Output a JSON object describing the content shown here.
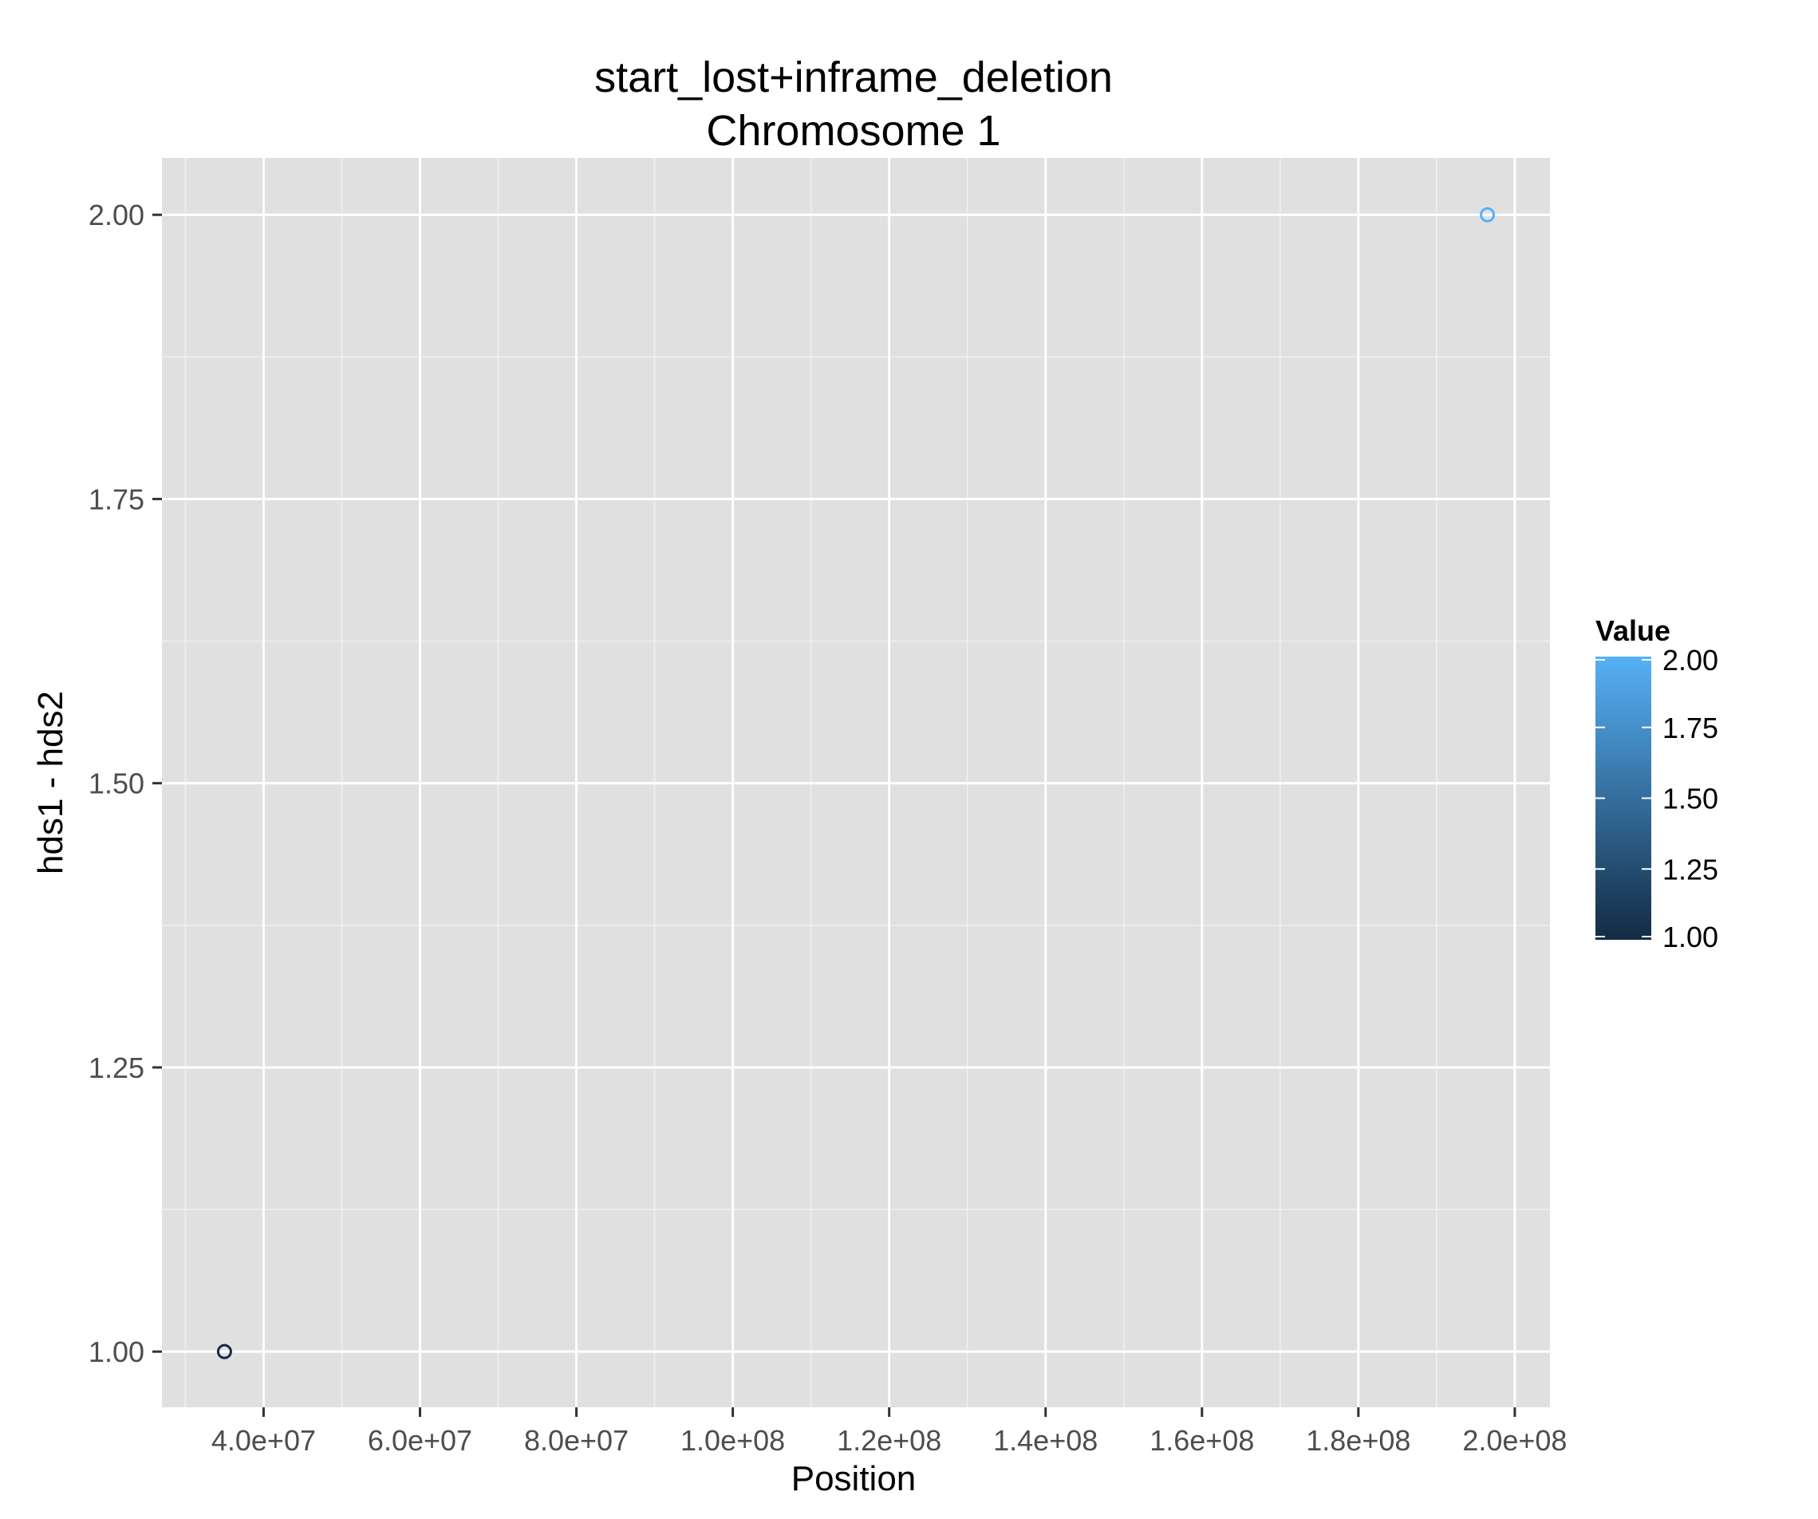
{
  "chart_data": {
    "type": "scatter",
    "title": "start_lost+inframe_deletion",
    "subtitle": "Chromosome 1",
    "xlabel": "Position",
    "ylabel": "hds1 - hds2",
    "x_ticks": [
      40000000,
      60000000,
      80000000,
      100000000,
      120000000,
      140000000,
      160000000,
      180000000,
      200000000
    ],
    "x_tick_labels": [
      "4.0e+07",
      "6.0e+07",
      "8.0e+07",
      "1.0e+08",
      "1.2e+08",
      "1.4e+08",
      "1.6e+08",
      "1.8e+08",
      "2.0e+08"
    ],
    "y_ticks": [
      1.0,
      1.25,
      1.5,
      1.75,
      2.0
    ],
    "y_tick_labels": [
      "1.00",
      "1.25",
      "1.50",
      "1.75",
      "2.00"
    ],
    "xlim": [
      27000000,
      204500000
    ],
    "ylim": [
      0.951,
      2.05
    ],
    "grid": true,
    "points": [
      {
        "x": 35000000,
        "y": 1.0,
        "value": 1.0
      },
      {
        "x": 196500000,
        "y": 2.0,
        "value": 2.0
      }
    ],
    "legend": {
      "title": "Value",
      "placement": "right",
      "range": [
        1.0,
        2.0
      ],
      "ticks": [
        1.0,
        1.25,
        1.5,
        1.75,
        2.0
      ],
      "tick_labels": [
        "1.00",
        "1.25",
        "1.50",
        "1.75",
        "2.00"
      ],
      "color_low": "#132B43",
      "color_high": "#56B1F7"
    },
    "panel_color": "#E0E0E0",
    "grid_color": "#FFFFFF"
  }
}
